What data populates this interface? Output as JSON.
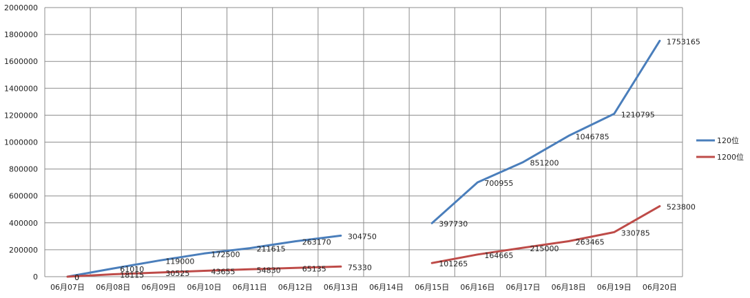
{
  "chart_data": {
    "type": "line",
    "categories": [
      "06月07日",
      "06月08日",
      "06月09日",
      "06月10日",
      "06月11日",
      "06月12日",
      "06月13日",
      "06月14日",
      "06月15日",
      "06月16日",
      "06月17日",
      "06月18日",
      "06月19日",
      "06月20日"
    ],
    "ylim": [
      0,
      2000000
    ],
    "yticks": [
      0,
      200000,
      400000,
      600000,
      800000,
      1000000,
      1200000,
      1400000,
      1600000,
      1800000,
      2000000
    ],
    "grid": true,
    "legend_position": "right",
    "series": [
      {
        "name": "120位",
        "color": "#4a7ebb",
        "values": [
          0,
          61010,
          119000,
          172500,
          211615,
          263170,
          304750,
          null,
          397730,
          700955,
          851200,
          1046785,
          1210795,
          1753165
        ],
        "labels": [
          "0",
          "61010",
          "119000",
          "172500",
          "211615",
          "263170",
          "304750",
          "",
          "397730",
          "700955",
          "851200",
          "1046785",
          "1210795",
          "1753165"
        ]
      },
      {
        "name": "1200位",
        "color": "#be4b48",
        "values": [
          0,
          18115,
          30525,
          43655,
          54830,
          65135,
          75330,
          null,
          101265,
          164665,
          215000,
          263465,
          330785,
          523800
        ],
        "labels": [
          "0",
          "18115",
          "30525",
          "43655",
          "54830",
          "65135",
          "75330",
          "",
          "101265",
          "164665",
          "215000",
          "263465",
          "330785",
          "523800"
        ]
      }
    ]
  }
}
